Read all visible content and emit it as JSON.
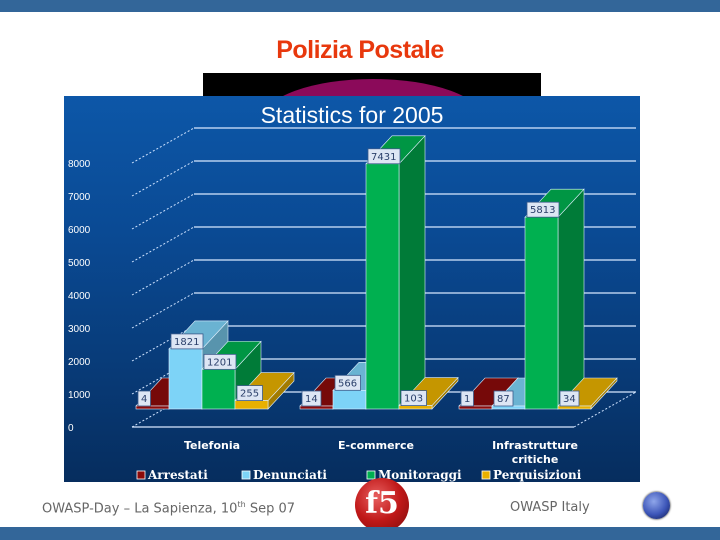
{
  "slide": {
    "title": "Polizia Postale",
    "footer_left": "OWASP-Day – La Sapienza, 10",
    "footer_left_sup": "th",
    "footer_left_end": " Sep 07",
    "footer_right": "OWASP Italy",
    "logo_text": "f5"
  },
  "colors": {
    "band": "#336699",
    "title": "#e8380d",
    "arrestati": "#8b0a0a",
    "denunciati": "#7dd3f7",
    "monitoraggi": "#00b050",
    "perquisizioni": "#e8b000"
  },
  "chart_data": {
    "type": "bar",
    "title": "Statistics for 2005",
    "categories": [
      "Telefonia",
      "E-commerce",
      "Infrastrutture critiche"
    ],
    "series": [
      {
        "name": "Arrestati",
        "values": [
          4,
          14,
          1
        ]
      },
      {
        "name": "Denunciati",
        "values": [
          1821,
          566,
          87
        ]
      },
      {
        "name": "Monitoraggi",
        "values": [
          1201,
          7431,
          5813
        ]
      },
      {
        "name": "Perquisizioni",
        "values": [
          255,
          103,
          34
        ]
      }
    ],
    "yticks": [
      "0",
      "1000",
      "2000",
      "3000",
      "4000",
      "5000",
      "6000",
      "7000",
      "8000"
    ],
    "ylim": [
      0,
      8000
    ],
    "xlabel": "",
    "ylabel": "",
    "grid": true,
    "legend_position": "bottom",
    "style": "3d-clustered"
  }
}
